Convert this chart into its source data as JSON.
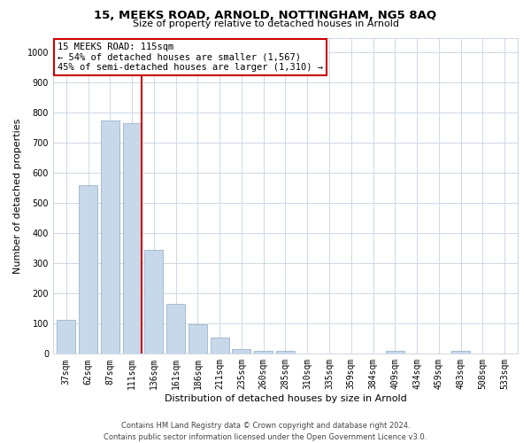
{
  "title": "15, MEEKS ROAD, ARNOLD, NOTTINGHAM, NG5 8AQ",
  "subtitle": "Size of property relative to detached houses in Arnold",
  "xlabel": "Distribution of detached houses by size in Arnold",
  "ylabel": "Number of detached properties",
  "bar_labels": [
    "37sqm",
    "62sqm",
    "87sqm",
    "111sqm",
    "136sqm",
    "161sqm",
    "186sqm",
    "211sqm",
    "235sqm",
    "260sqm",
    "285sqm",
    "310sqm",
    "335sqm",
    "359sqm",
    "384sqm",
    "409sqm",
    "434sqm",
    "459sqm",
    "483sqm",
    "508sqm",
    "533sqm"
  ],
  "bar_values": [
    113,
    560,
    775,
    765,
    345,
    165,
    97,
    53,
    15,
    10,
    10,
    0,
    0,
    0,
    0,
    10,
    0,
    0,
    10,
    0,
    0
  ],
  "bar_color": "#c8d8eb",
  "bar_edge_color": "#9ab5cc",
  "vline_color": "#cc0000",
  "annotation_text": "15 MEEKS ROAD: 115sqm\n← 54% of detached houses are smaller (1,567)\n45% of semi-detached houses are larger (1,310) →",
  "annotation_box_color": "#ffffff",
  "annotation_box_edge": "#cc0000",
  "ylim": [
    0,
    1050
  ],
  "yticks": [
    0,
    100,
    200,
    300,
    400,
    500,
    600,
    700,
    800,
    900,
    1000
  ],
  "footer_line1": "Contains HM Land Registry data © Crown copyright and database right 2024.",
  "footer_line2": "Contains public sector information licensed under the Open Government Licence v3.0.",
  "bg_color": "#ffffff",
  "grid_color": "#ccd8e4",
  "title_fontsize": 9.5,
  "subtitle_fontsize": 8,
  "tick_fontsize": 7,
  "label_fontsize": 8,
  "annotation_fontsize": 7.5,
  "footer_fontsize": 6
}
